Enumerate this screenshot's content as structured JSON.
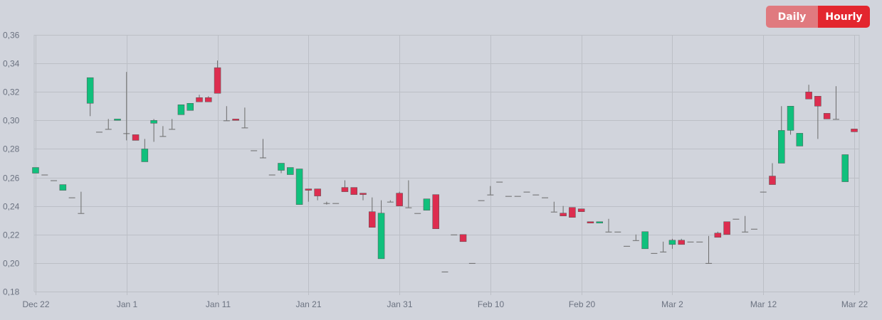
{
  "toggle": {
    "daily_label": "Daily",
    "hourly_label": "Hourly",
    "active": "hourly"
  },
  "colors": {
    "up": "#10c07c",
    "down": "#dd2d4f",
    "wick": "#6b6b6b",
    "grid": "#bcbfc6",
    "background": "#d1d4dc"
  },
  "chart_data": {
    "type": "candlestick",
    "title": "",
    "xlabel": "",
    "ylabel": "",
    "ylim": [
      0.18,
      0.36
    ],
    "y_ticks": [
      "0,36",
      "0,34",
      "0,32",
      "0,30",
      "0,28",
      "0,26",
      "0,24",
      "0,22",
      "0,20",
      "0,18"
    ],
    "x_ticks": [
      "Dec 22",
      "Jan 1",
      "Jan 11",
      "Jan 21",
      "Jan 31",
      "Feb 10",
      "Feb 20",
      "Mar 2",
      "Mar 12",
      "Mar 22"
    ],
    "grid": true,
    "candles": [
      {
        "d": "Dec 22",
        "o": 0.263,
        "h": 0.267,
        "l": 0.263,
        "c": 0.267
      },
      {
        "d": "Dec 23",
        "o": 0.262,
        "h": 0.262,
        "l": 0.262,
        "c": 0.262
      },
      {
        "d": "Dec 24",
        "o": 0.258,
        "h": 0.258,
        "l": 0.258,
        "c": 0.258
      },
      {
        "d": "Dec 25",
        "o": 0.251,
        "h": 0.255,
        "l": 0.251,
        "c": 0.255
      },
      {
        "d": "Dec 26",
        "o": 0.246,
        "h": 0.246,
        "l": 0.246,
        "c": 0.246
      },
      {
        "d": "Dec 27",
        "o": 0.235,
        "h": 0.25,
        "l": 0.235,
        "c": 0.235
      },
      {
        "d": "Dec 28",
        "o": 0.312,
        "h": 0.33,
        "l": 0.303,
        "c": 0.33
      },
      {
        "d": "Dec 29",
        "o": 0.292,
        "h": 0.292,
        "l": 0.292,
        "c": 0.292
      },
      {
        "d": "Dec 30",
        "o": 0.294,
        "h": 0.301,
        "l": 0.294,
        "c": 0.294
      },
      {
        "d": "Dec 31",
        "o": 0.3,
        "h": 0.301,
        "l": 0.3,
        "c": 0.301
      },
      {
        "d": "Jan 1",
        "o": 0.291,
        "h": 0.334,
        "l": 0.286,
        "c": 0.291
      },
      {
        "d": "Jan 2",
        "o": 0.29,
        "h": 0.29,
        "l": 0.286,
        "c": 0.286
      },
      {
        "d": "Jan 3",
        "o": 0.271,
        "h": 0.287,
        "l": 0.271,
        "c": 0.28
      },
      {
        "d": "Jan 4",
        "o": 0.298,
        "h": 0.301,
        "l": 0.285,
        "c": 0.3
      },
      {
        "d": "Jan 5",
        "o": 0.289,
        "h": 0.296,
        "l": 0.289,
        "c": 0.289
      },
      {
        "d": "Jan 6",
        "o": 0.294,
        "h": 0.301,
        "l": 0.294,
        "c": 0.294
      },
      {
        "d": "Jan 7",
        "o": 0.304,
        "h": 0.311,
        "l": 0.304,
        "c": 0.311
      },
      {
        "d": "Jan 8",
        "o": 0.307,
        "h": 0.312,
        "l": 0.307,
        "c": 0.312
      },
      {
        "d": "Jan 9",
        "o": 0.316,
        "h": 0.318,
        "l": 0.313,
        "c": 0.313
      },
      {
        "d": "Jan 10",
        "o": 0.316,
        "h": 0.317,
        "l": 0.313,
        "c": 0.313
      },
      {
        "d": "Jan 11",
        "o": 0.337,
        "h": 0.342,
        "l": 0.319,
        "c": 0.319
      },
      {
        "d": "Jan 12",
        "o": 0.3,
        "h": 0.31,
        "l": 0.3,
        "c": 0.3
      },
      {
        "d": "Jan 13",
        "o": 0.301,
        "h": 0.301,
        "l": 0.3,
        "c": 0.3
      },
      {
        "d": "Jan 14",
        "o": 0.295,
        "h": 0.309,
        "l": 0.295,
        "c": 0.295
      },
      {
        "d": "Jan 15",
        "o": 0.279,
        "h": 0.279,
        "l": 0.279,
        "c": 0.279
      },
      {
        "d": "Jan 16",
        "o": 0.274,
        "h": 0.287,
        "l": 0.274,
        "c": 0.274
      },
      {
        "d": "Jan 17",
        "o": 0.262,
        "h": 0.262,
        "l": 0.262,
        "c": 0.262
      },
      {
        "d": "Jan 18",
        "o": 0.265,
        "h": 0.27,
        "l": 0.263,
        "c": 0.27
      },
      {
        "d": "Jan 19",
        "o": 0.262,
        "h": 0.267,
        "l": 0.262,
        "c": 0.267
      },
      {
        "d": "Jan 20",
        "o": 0.241,
        "h": 0.266,
        "l": 0.241,
        "c": 0.266
      },
      {
        "d": "Jan 21",
        "o": 0.252,
        "h": 0.252,
        "l": 0.243,
        "c": 0.251
      },
      {
        "d": "Jan 22",
        "o": 0.252,
        "h": 0.252,
        "l": 0.244,
        "c": 0.247
      },
      {
        "d": "Jan 23",
        "o": 0.242,
        "h": 0.243,
        "l": 0.241,
        "c": 0.242
      },
      {
        "d": "Jan 24",
        "o": 0.242,
        "h": 0.242,
        "l": 0.242,
        "c": 0.242
      },
      {
        "d": "Jan 25",
        "o": 0.253,
        "h": 0.258,
        "l": 0.25,
        "c": 0.25
      },
      {
        "d": "Jan 26",
        "o": 0.253,
        "h": 0.253,
        "l": 0.248,
        "c": 0.248
      },
      {
        "d": "Jan 27",
        "o": 0.249,
        "h": 0.249,
        "l": 0.244,
        "c": 0.248
      },
      {
        "d": "Jan 28",
        "o": 0.236,
        "h": 0.246,
        "l": 0.225,
        "c": 0.225
      },
      {
        "d": "Jan 29",
        "o": 0.203,
        "h": 0.244,
        "l": 0.203,
        "c": 0.235
      },
      {
        "d": "Jan 30",
        "o": 0.243,
        "h": 0.244,
        "l": 0.243,
        "c": 0.243
      },
      {
        "d": "Jan 31",
        "o": 0.249,
        "h": 0.25,
        "l": 0.24,
        "c": 0.24
      },
      {
        "d": "Feb 1",
        "o": 0.239,
        "h": 0.258,
        "l": 0.239,
        "c": 0.239
      },
      {
        "d": "Feb 2",
        "o": 0.235,
        "h": 0.235,
        "l": 0.235,
        "c": 0.235
      },
      {
        "d": "Feb 3",
        "o": 0.237,
        "h": 0.245,
        "l": 0.237,
        "c": 0.245
      },
      {
        "d": "Feb 4",
        "o": 0.248,
        "h": 0.248,
        "l": 0.224,
        "c": 0.224
      },
      {
        "d": "Feb 5",
        "o": 0.194,
        "h": 0.194,
        "l": 0.194,
        "c": 0.194
      },
      {
        "d": "Feb 6",
        "o": 0.22,
        "h": 0.22,
        "l": 0.22,
        "c": 0.22
      },
      {
        "d": "Feb 7",
        "o": 0.22,
        "h": 0.22,
        "l": 0.215,
        "c": 0.215
      },
      {
        "d": "Feb 8",
        "o": 0.2,
        "h": 0.2,
        "l": 0.2,
        "c": 0.2
      },
      {
        "d": "Feb 9",
        "o": 0.244,
        "h": 0.244,
        "l": 0.244,
        "c": 0.244
      },
      {
        "d": "Feb 10",
        "o": 0.248,
        "h": 0.254,
        "l": 0.248,
        "c": 0.248
      },
      {
        "d": "Feb 11",
        "o": 0.257,
        "h": 0.257,
        "l": 0.257,
        "c": 0.257
      },
      {
        "d": "Feb 12",
        "o": 0.247,
        "h": 0.247,
        "l": 0.247,
        "c": 0.247
      },
      {
        "d": "Feb 13",
        "o": 0.247,
        "h": 0.247,
        "l": 0.247,
        "c": 0.247
      },
      {
        "d": "Feb 14",
        "o": 0.25,
        "h": 0.25,
        "l": 0.25,
        "c": 0.25
      },
      {
        "d": "Feb 15",
        "o": 0.248,
        "h": 0.248,
        "l": 0.248,
        "c": 0.248
      },
      {
        "d": "Feb 16",
        "o": 0.246,
        "h": 0.246,
        "l": 0.246,
        "c": 0.246
      },
      {
        "d": "Feb 17",
        "o": 0.236,
        "h": 0.243,
        "l": 0.236,
        "c": 0.236
      },
      {
        "d": "Feb 18",
        "o": 0.235,
        "h": 0.24,
        "l": 0.233,
        "c": 0.233
      },
      {
        "d": "Feb 19",
        "o": 0.239,
        "h": 0.239,
        "l": 0.232,
        "c": 0.232
      },
      {
        "d": "Feb 20",
        "o": 0.238,
        "h": 0.238,
        "l": 0.236,
        "c": 0.236
      },
      {
        "d": "Feb 21",
        "o": 0.229,
        "h": 0.229,
        "l": 0.228,
        "c": 0.228
      },
      {
        "d": "Feb 22",
        "o": 0.228,
        "h": 0.229,
        "l": 0.228,
        "c": 0.229
      },
      {
        "d": "Feb 23",
        "o": 0.222,
        "h": 0.231,
        "l": 0.222,
        "c": 0.222
      },
      {
        "d": "Feb 24",
        "o": 0.222,
        "h": 0.222,
        "l": 0.222,
        "c": 0.222
      },
      {
        "d": "Feb 25",
        "o": 0.212,
        "h": 0.212,
        "l": 0.212,
        "c": 0.212
      },
      {
        "d": "Feb 26",
        "o": 0.216,
        "h": 0.22,
        "l": 0.216,
        "c": 0.216
      },
      {
        "d": "Feb 27",
        "o": 0.21,
        "h": 0.222,
        "l": 0.21,
        "c": 0.222
      },
      {
        "d": "Feb 28",
        "o": 0.207,
        "h": 0.207,
        "l": 0.207,
        "c": 0.207
      },
      {
        "d": "Mar 1",
        "o": 0.208,
        "h": 0.215,
        "l": 0.208,
        "c": 0.208
      },
      {
        "d": "Mar 2",
        "o": 0.213,
        "h": 0.217,
        "l": 0.21,
        "c": 0.216
      },
      {
        "d": "Mar 3",
        "o": 0.216,
        "h": 0.217,
        "l": 0.213,
        "c": 0.213
      },
      {
        "d": "Mar 4",
        "o": 0.215,
        "h": 0.215,
        "l": 0.215,
        "c": 0.215
      },
      {
        "d": "Mar 5",
        "o": 0.215,
        "h": 0.215,
        "l": 0.215,
        "c": 0.215
      },
      {
        "d": "Mar 6",
        "o": 0.2,
        "h": 0.219,
        "l": 0.2,
        "c": 0.2
      },
      {
        "d": "Mar 7",
        "o": 0.221,
        "h": 0.222,
        "l": 0.218,
        "c": 0.218
      },
      {
        "d": "Mar 8",
        "o": 0.229,
        "h": 0.229,
        "l": 0.22,
        "c": 0.22
      },
      {
        "d": "Mar 9",
        "o": 0.231,
        "h": 0.231,
        "l": 0.231,
        "c": 0.231
      },
      {
        "d": "Mar 10",
        "o": 0.222,
        "h": 0.233,
        "l": 0.222,
        "c": 0.222
      },
      {
        "d": "Mar 11",
        "o": 0.224,
        "h": 0.224,
        "l": 0.224,
        "c": 0.224
      },
      {
        "d": "Mar 12",
        "o": 0.25,
        "h": 0.25,
        "l": 0.25,
        "c": 0.25
      },
      {
        "d": "Mar 13",
        "o": 0.261,
        "h": 0.27,
        "l": 0.255,
        "c": 0.255
      },
      {
        "d": "Mar 14",
        "o": 0.27,
        "h": 0.31,
        "l": 0.27,
        "c": 0.293
      },
      {
        "d": "Mar 15",
        "o": 0.293,
        "h": 0.31,
        "l": 0.29,
        "c": 0.31
      },
      {
        "d": "Mar 16",
        "o": 0.282,
        "h": 0.291,
        "l": 0.282,
        "c": 0.291
      },
      {
        "d": "Mar 17",
        "o": 0.32,
        "h": 0.325,
        "l": 0.315,
        "c": 0.315
      },
      {
        "d": "Mar 18",
        "o": 0.317,
        "h": 0.317,
        "l": 0.287,
        "c": 0.31
      },
      {
        "d": "Mar 19",
        "o": 0.305,
        "h": 0.305,
        "l": 0.301,
        "c": 0.301
      },
      {
        "d": "Mar 20",
        "o": 0.301,
        "h": 0.324,
        "l": 0.301,
        "c": 0.301
      },
      {
        "d": "Mar 21",
        "o": 0.257,
        "h": 0.276,
        "l": 0.257,
        "c": 0.276
      },
      {
        "d": "Mar 22",
        "o": 0.294,
        "h": 0.294,
        "l": 0.292,
        "c": 0.292
      }
    ]
  }
}
